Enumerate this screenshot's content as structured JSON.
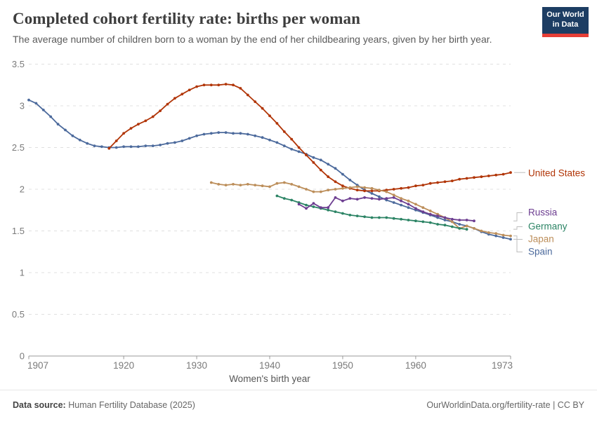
{
  "header": {
    "title": "Completed cohort fertility rate: births per woman",
    "subtitle": "The average number of children born to a woman by the end of her childbearing years, given by her birth year.",
    "logo": {
      "line1": "Our World",
      "line2": "in Data",
      "bg_color": "#1d3d63",
      "stripe_color": "#e63e36"
    }
  },
  "footer": {
    "source_label": "Data source:",
    "source_value": "Human Fertility Database (2025)",
    "right_text": "OurWorldinData.org/fertility-rate | CC BY"
  },
  "chart_data": {
    "type": "line",
    "title": "Completed cohort fertility rate: births per woman",
    "xlabel": "Women's birth year",
    "ylabel": "",
    "x_range": [
      1907,
      1973
    ],
    "ylim": [
      0,
      3.5
    ],
    "x_ticks": [
      1907,
      1920,
      1930,
      1940,
      1950,
      1960,
      1973
    ],
    "y_ticks": [
      0,
      0.5,
      1,
      1.5,
      2,
      2.5,
      3,
      3.5
    ],
    "grid": "horizontal-dashed",
    "legend_position": "right-edge-labels",
    "grid_color": "#e0e0e0",
    "axis_color": "#999999",
    "tick_label_color": "#7a7a7a",
    "connector_color": "#bdbdbd",
    "series": [
      {
        "name": "United States",
        "color": "#B13507",
        "start_year": 1918,
        "values": [
          2.49,
          2.58,
          2.67,
          2.73,
          2.78,
          2.82,
          2.87,
          2.94,
          3.02,
          3.09,
          3.14,
          3.19,
          3.23,
          3.25,
          3.25,
          3.25,
          3.26,
          3.25,
          3.21,
          3.13,
          3.05,
          2.97,
          2.88,
          2.79,
          2.69,
          2.6,
          2.5,
          2.41,
          2.32,
          2.23,
          2.15,
          2.09,
          2.04,
          2.01,
          1.99,
          1.98,
          1.98,
          1.98,
          1.99,
          2.0,
          2.01,
          2.02,
          2.04,
          2.05,
          2.07,
          2.08,
          2.09,
          2.1,
          2.12,
          2.13,
          2.14,
          2.15,
          2.16,
          2.17,
          2.18,
          2.2
        ]
      },
      {
        "name": "Russia",
        "color": "#6D3E91",
        "start_year": 1944,
        "values": [
          1.82,
          1.77,
          1.83,
          1.78,
          1.78,
          1.9,
          1.86,
          1.89,
          1.88,
          1.9,
          1.89,
          1.88,
          1.89,
          1.9,
          1.86,
          1.82,
          1.77,
          1.73,
          1.7,
          1.68,
          1.66,
          1.64,
          1.63,
          1.63,
          1.62
        ]
      },
      {
        "name": "Germany",
        "color": "#2C8465",
        "start_year": 1941,
        "values": [
          1.92,
          1.89,
          1.87,
          1.84,
          1.81,
          1.79,
          1.77,
          1.75,
          1.73,
          1.71,
          1.69,
          1.68,
          1.67,
          1.66,
          1.66,
          1.66,
          1.65,
          1.64,
          1.63,
          1.62,
          1.61,
          1.6,
          1.58,
          1.57,
          1.55,
          1.53,
          1.52
        ]
      },
      {
        "name": "Japan",
        "color": "#BC8E5A",
        "start_year": 1932,
        "values": [
          2.08,
          2.06,
          2.05,
          2.06,
          2.05,
          2.06,
          2.05,
          2.04,
          2.03,
          2.07,
          2.08,
          2.06,
          2.03,
          2.0,
          1.97,
          1.97,
          1.99,
          2.0,
          2.01,
          2.02,
          2.03,
          2.02,
          2.01,
          1.99,
          1.97,
          1.93,
          1.89,
          1.86,
          1.82,
          1.78,
          1.74,
          1.7,
          1.66,
          1.61,
          1.53,
          1.56,
          1.53,
          1.5,
          1.48,
          1.47,
          1.45,
          1.44
        ]
      },
      {
        "name": "Spain",
        "color": "#4C6A9C",
        "start_year": 1907,
        "values": [
          3.07,
          3.03,
          2.95,
          2.87,
          2.78,
          2.71,
          2.64,
          2.59,
          2.55,
          2.52,
          2.51,
          2.5,
          2.5,
          2.51,
          2.51,
          2.51,
          2.52,
          2.52,
          2.53,
          2.55,
          2.56,
          2.58,
          2.61,
          2.64,
          2.66,
          2.67,
          2.68,
          2.68,
          2.67,
          2.67,
          2.66,
          2.64,
          2.62,
          2.59,
          2.56,
          2.52,
          2.48,
          2.45,
          2.42,
          2.38,
          2.35,
          2.3,
          2.25,
          2.18,
          2.11,
          2.05,
          1.99,
          1.95,
          1.91,
          1.87,
          1.84,
          1.81,
          1.78,
          1.75,
          1.72,
          1.69,
          1.66,
          1.63,
          1.61,
          1.58,
          1.56,
          1.53,
          1.49,
          1.46,
          1.44,
          1.42,
          1.4
        ]
      }
    ]
  }
}
